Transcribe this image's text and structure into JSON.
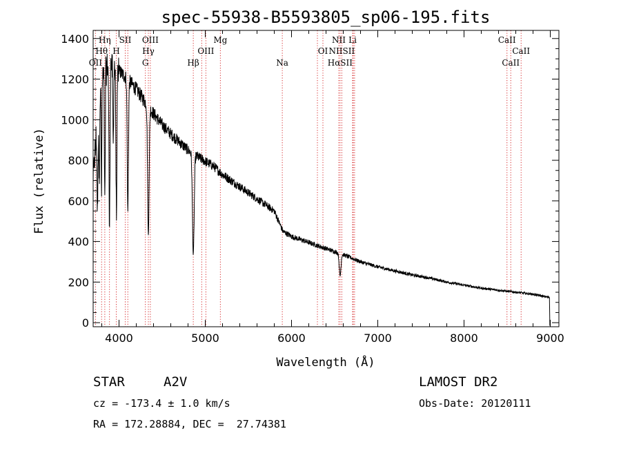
{
  "chart_data": {
    "type": "line",
    "title": "spec-55938-B5593805_sp06-195.fits",
    "xlabel": "Wavelength (Å)",
    "ylabel": "Flux (relative)",
    "xlim": [
      3700,
      9100
    ],
    "ylim": [
      -20,
      1440
    ],
    "x_ticks": [
      4000,
      5000,
      6000,
      7000,
      8000,
      9000
    ],
    "y_ticks": [
      0,
      200,
      400,
      600,
      800,
      1000,
      1200,
      1400
    ],
    "grid": false,
    "continuum": [
      [
        3700,
        700
      ],
      [
        3750,
        1000
      ],
      [
        3800,
        1200
      ],
      [
        3850,
        1250
      ],
      [
        3900,
        1270
      ],
      [
        3950,
        1260
      ],
      [
        4000,
        1240
      ],
      [
        4100,
        1200
      ],
      [
        4200,
        1150
      ],
      [
        4300,
        1090
      ],
      [
        4400,
        1030
      ],
      [
        4500,
        975
      ],
      [
        4600,
        930
      ],
      [
        4700,
        890
      ],
      [
        4800,
        850
      ],
      [
        4900,
        820
      ],
      [
        5000,
        795
      ],
      [
        5100,
        770
      ],
      [
        5200,
        730
      ],
      [
        5300,
        700
      ],
      [
        5400,
        670
      ],
      [
        5500,
        640
      ],
      [
        5600,
        610
      ],
      [
        5700,
        580
      ],
      [
        5800,
        550
      ],
      [
        5900,
        450
      ],
      [
        6000,
        425
      ],
      [
        6200,
        395
      ],
      [
        6400,
        365
      ],
      [
        6600,
        335
      ],
      [
        6800,
        300
      ],
      [
        7000,
        275
      ],
      [
        7200,
        255
      ],
      [
        7400,
        235
      ],
      [
        7600,
        220
      ],
      [
        7800,
        200
      ],
      [
        8000,
        185
      ],
      [
        8200,
        170
      ],
      [
        8400,
        160
      ],
      [
        8600,
        150
      ],
      [
        8800,
        140
      ],
      [
        8980,
        125
      ]
    ],
    "absorption": [
      {
        "center": 3750,
        "width": 8,
        "depth": 450
      },
      {
        "center": 3770,
        "width": 6,
        "depth": 400
      },
      {
        "center": 3797,
        "width": 6,
        "depth": 550
      },
      {
        "center": 3835,
        "width": 7,
        "depth": 650
      },
      {
        "center": 3889,
        "width": 8,
        "depth": 800
      },
      {
        "center": 3933,
        "width": 6,
        "depth": 400
      },
      {
        "center": 3970,
        "width": 9,
        "depth": 700
      },
      {
        "center": 4102,
        "width": 10,
        "depth": 650
      },
      {
        "center": 4340,
        "width": 12,
        "depth": 640
      },
      {
        "center": 4861,
        "width": 14,
        "depth": 500
      },
      {
        "center": 6563,
        "width": 14,
        "depth": 110
      }
    ],
    "noise_amplitude": 45,
    "spectral_lines": [
      {
        "label": "Hη",
        "wavelength": 3835,
        "row": 0
      },
      {
        "label": "SII",
        "wavelength": 4072,
        "row": 0
      },
      {
        "label": "OIII",
        "wavelength": 4363,
        "row": 0
      },
      {
        "label": "Mg",
        "wavelength": 5175,
        "row": 0
      },
      {
        "label": "NII",
        "wavelength": 6548,
        "row": 0
      },
      {
        "label": "Li",
        "wavelength": 6708,
        "row": 0
      },
      {
        "label": "CaII",
        "wavelength": 8498,
        "row": 0
      },
      {
        "label": "Hθ",
        "wavelength": 3798,
        "row": 1
      },
      {
        "label": "H",
        "wavelength": 3968,
        "row": 1
      },
      {
        "label": "Hγ",
        "wavelength": 4340,
        "row": 1
      },
      {
        "label": "OIII",
        "wavelength": 5007,
        "row": 1
      },
      {
        "label": "OI",
        "wavelength": 6364,
        "row": 1
      },
      {
        "label": "NIISII",
        "wavelength": 6583,
        "row": 1
      },
      {
        "label": "CaII",
        "wavelength": 8662,
        "row": 1
      },
      {
        "label": "OII",
        "wavelength": 3727,
        "row": 2
      },
      {
        "label": "G",
        "wavelength": 4305,
        "row": 2
      },
      {
        "label": "Hβ",
        "wavelength": 4861,
        "row": 2
      },
      {
        "label": "Na",
        "wavelength": 5893,
        "row": 2
      },
      {
        "label": "HαSII",
        "wavelength": 6563,
        "row": 2
      },
      {
        "label": "CaII",
        "wavelength": 8542,
        "row": 2
      }
    ],
    "marker_lines": [
      3727,
      3798,
      3835,
      3889,
      3968,
      4072,
      4102,
      4305,
      4340,
      4363,
      4861,
      4959,
      5007,
      5175,
      5893,
      6300,
      6364,
      6548,
      6563,
      6583,
      6708,
      6716,
      6731,
      8498,
      8542,
      8662
    ],
    "marker_color": "#d62728",
    "line_color": "#000000"
  },
  "info": {
    "object_class": "STAR",
    "subclass": "A2V",
    "survey": "LAMOST DR2",
    "redshift_text": "cz = -173.4 ± 1.0 km/s",
    "obs_date": "Obs-Date: 20120111",
    "coords": "RA = 172.28884, DEC =  27.74381"
  }
}
